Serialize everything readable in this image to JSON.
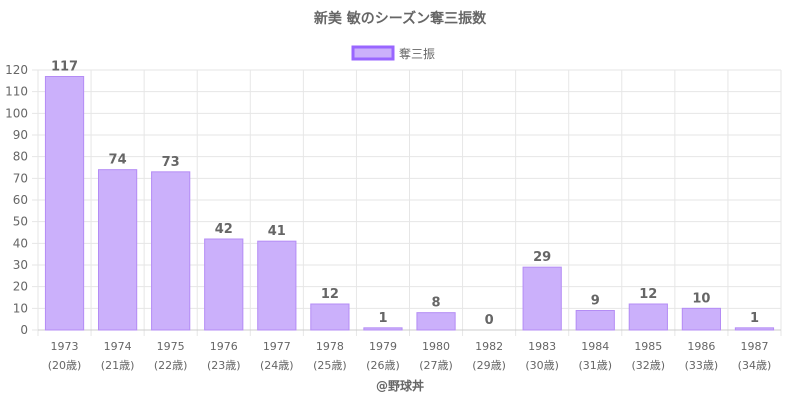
{
  "chart_data": {
    "type": "bar",
    "title": "新美 敏のシーズン奪三振数",
    "legend": {
      "label": "奪三振",
      "position": "top"
    },
    "categories": [
      "1973",
      "1974",
      "1975",
      "1976",
      "1977",
      "1978",
      "1979",
      "1980",
      "1982",
      "1983",
      "1984",
      "1985",
      "1986",
      "1987"
    ],
    "category_sublabels": [
      "(20歳)",
      "(21歳)",
      "(22歳)",
      "(23歳)",
      "(24歳)",
      "(25歳)",
      "(26歳)",
      "(27歳)",
      "(29歳)",
      "(30歳)",
      "(31歳)",
      "(32歳)",
      "(33歳)",
      "(34歳)"
    ],
    "series": [
      {
        "name": "奪三振",
        "values": [
          117,
          74,
          73,
          42,
          41,
          12,
          1,
          8,
          0,
          29,
          9,
          12,
          10,
          1
        ]
      }
    ],
    "ylim": [
      0,
      120
    ],
    "ytick_step": 10,
    "grid": true,
    "colors": {
      "bar_fill": "#cbb0fb",
      "bar_stroke": "#b48cf5",
      "legend_stroke": "#9966ff",
      "grid": "#e6e6e6"
    },
    "credit": "@野球丼"
  }
}
